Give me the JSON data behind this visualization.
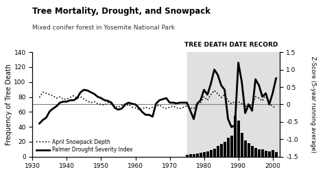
{
  "title": "Tree Mortality, Drought, and Snowpack",
  "subtitle": "Mixed conifer forest in Yosemite National Park",
  "annotation": "TREE DEATH DATE RECORD",
  "ylabel_left": "Frequency of Tree Death",
  "ylabel_right": "Z-Score (5-year running average)",
  "xlim": [
    1930,
    2002
  ],
  "ylim_left": [
    0,
    140
  ],
  "ylim_right": [
    -1.5,
    1.5
  ],
  "yticks_left": [
    0,
    20,
    40,
    60,
    80,
    100,
    120,
    140
  ],
  "yticks_right": [
    -1.5,
    -1.0,
    -0.5,
    0,
    0.5,
    1.0,
    1.5
  ],
  "xticks": [
    1930,
    1940,
    1950,
    1960,
    1970,
    1980,
    1990,
    2000
  ],
  "hline_y_right": 0,
  "shade_xmin": 1975,
  "shade_xmax": 2002,
  "snowpack_years": [
    1932,
    1933,
    1934,
    1935,
    1936,
    1937,
    1938,
    1939,
    1940,
    1941,
    1942,
    1943,
    1944,
    1945,
    1946,
    1947,
    1948,
    1949,
    1950,
    1951,
    1952,
    1953,
    1954,
    1955,
    1956,
    1957,
    1958,
    1959,
    1960,
    1961,
    1962,
    1963,
    1964,
    1965,
    1966,
    1967,
    1968,
    1969,
    1970,
    1971,
    1972,
    1973,
    1974,
    1975,
    1976,
    1977,
    1978,
    1979,
    1980,
    1981,
    1982,
    1983,
    1984,
    1985,
    1986,
    1987,
    1988,
    1989,
    1990,
    1991,
    1992,
    1993,
    1994,
    1995,
    1996,
    1997,
    1998,
    1999,
    2000,
    2001
  ],
  "snowpack_vals": [
    0.2,
    0.35,
    0.32,
    0.28,
    0.25,
    0.18,
    0.22,
    0.15,
    0.15,
    0.2,
    0.25,
    0.18,
    0.22,
    0.15,
    0.1,
    0.05,
    0.08,
    0.02,
    0.0,
    -0.02,
    0.05,
    0.0,
    -0.05,
    -0.08,
    -0.02,
    -0.05,
    0.0,
    -0.08,
    -0.1,
    -0.15,
    -0.12,
    -0.08,
    -0.12,
    -0.08,
    -0.05,
    -0.02,
    -0.08,
    -0.12,
    -0.08,
    -0.05,
    -0.1,
    -0.12,
    -0.08,
    -0.05,
    -0.1,
    -0.12,
    0.02,
    0.05,
    0.22,
    0.12,
    0.28,
    0.4,
    0.3,
    0.2,
    0.28,
    0.1,
    0.02,
    0.08,
    0.08,
    0.02,
    -0.08,
    0.02,
    -0.05,
    0.22,
    0.18,
    0.1,
    0.28,
    0.02,
    -0.05,
    -0.1
  ],
  "pdsi_years": [
    1932,
    1933,
    1934,
    1935,
    1936,
    1937,
    1938,
    1939,
    1940,
    1941,
    1942,
    1943,
    1944,
    1945,
    1946,
    1947,
    1948,
    1949,
    1950,
    1951,
    1952,
    1953,
    1954,
    1955,
    1956,
    1957,
    1958,
    1959,
    1960,
    1961,
    1962,
    1963,
    1964,
    1965,
    1966,
    1967,
    1968,
    1969,
    1970,
    1971,
    1972,
    1973,
    1974,
    1975,
    1976,
    1977,
    1978,
    1979,
    1980,
    1981,
    1982,
    1983,
    1984,
    1985,
    1986,
    1987,
    1988,
    1989,
    1990,
    1991,
    1992,
    1993,
    1994,
    1995,
    1996,
    1997,
    1998,
    1999,
    2000,
    2001
  ],
  "pdsi_vals": [
    -0.55,
    -0.45,
    -0.38,
    -0.2,
    -0.12,
    -0.05,
    0.05,
    0.08,
    0.08,
    0.12,
    0.12,
    0.18,
    0.35,
    0.42,
    0.4,
    0.35,
    0.3,
    0.22,
    0.18,
    0.12,
    0.1,
    0.05,
    -0.1,
    -0.15,
    -0.12,
    0.0,
    0.05,
    0.02,
    0.0,
    -0.1,
    -0.22,
    -0.3,
    -0.3,
    -0.35,
    0.02,
    0.12,
    0.15,
    0.18,
    0.05,
    0.05,
    0.03,
    0.05,
    0.05,
    0.05,
    -0.18,
    -0.42,
    0.02,
    0.12,
    0.42,
    0.28,
    0.6,
    1.0,
    0.85,
    0.55,
    0.42,
    -0.42,
    -0.65,
    -0.6,
    1.2,
    0.65,
    -0.25,
    0.0,
    -0.18,
    0.72,
    0.55,
    0.22,
    0.32,
    0.0,
    0.32,
    0.75
  ],
  "bar_years": [
    1975,
    1976,
    1977,
    1978,
    1979,
    1980,
    1981,
    1982,
    1983,
    1984,
    1985,
    1986,
    1987,
    1988,
    1989,
    1990,
    1991,
    1992,
    1993,
    1994,
    1995,
    1996,
    1997,
    1998,
    1999,
    2000,
    2001
  ],
  "bar_vals": [
    2,
    3,
    3,
    4,
    5,
    6,
    7,
    9,
    11,
    14,
    17,
    20,
    25,
    28,
    55,
    48,
    32,
    22,
    18,
    14,
    12,
    10,
    10,
    8,
    7,
    9,
    6
  ],
  "legend_dotted": "April Snowpack Depth",
  "legend_solid": "Palmer Drought Severity Index",
  "background_color": "#ffffff",
  "shade_color": "#e0e0e0"
}
